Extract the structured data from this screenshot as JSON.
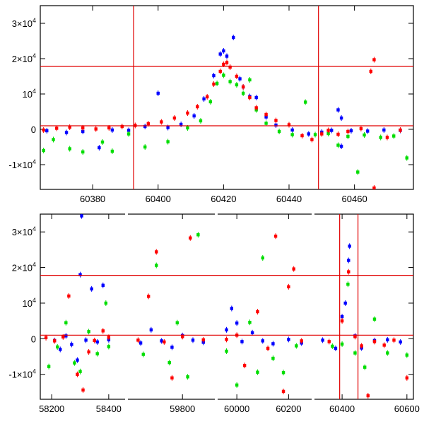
{
  "chart_data": [
    {
      "type": "scatter",
      "title": "",
      "xlabel": "",
      "ylabel": "",
      "xlim": [
        60364,
        60478
      ],
      "ylim": [
        -17000,
        35000
      ],
      "grid": false,
      "x_ticks": [
        60380,
        60400,
        60420,
        60440,
        60460
      ],
      "y_ticks": [
        {
          "value": 30000,
          "label": "3×10",
          "exp": "4"
        },
        {
          "value": 20000,
          "label": "2×10",
          "exp": "4"
        },
        {
          "value": 10000,
          "label": "10",
          "exp": "4"
        },
        {
          "value": 0,
          "label": "0",
          "exp": ""
        },
        {
          "value": -10000,
          "label": "-1×10",
          "exp": "4"
        }
      ],
      "reference_lines": {
        "vertical": [
          60392.5,
          60449
        ],
        "horizontal": [
          17800,
          1000
        ]
      },
      "series": [
        {
          "color": "#0000ff",
          "points": [
            [
              60366,
              -400
            ],
            [
              60372,
              -900
            ],
            [
              60377,
              -600
            ],
            [
              60382,
              -5200
            ],
            [
              60386,
              -200
            ],
            [
              60391,
              -300
            ],
            [
              60396,
              800
            ],
            [
              60400,
              10200
            ],
            [
              60403,
              500
            ],
            [
              60407,
              1400
            ],
            [
              60411,
              3800
            ],
            [
              60414,
              8600
            ],
            [
              60417,
              15200
            ],
            [
              60419,
              21300
            ],
            [
              60420,
              22200
            ],
            [
              60421,
              20700
            ],
            [
              60423,
              26000
            ],
            [
              60425,
              14300
            ],
            [
              60426,
              12000
            ],
            [
              60428,
              9300
            ],
            [
              60430,
              9000
            ],
            [
              60433,
              3500
            ],
            [
              60436,
              1200
            ],
            [
              60441,
              -200
            ],
            [
              60446,
              -1300
            ],
            [
              60450,
              -800
            ],
            [
              60453,
              -300
            ],
            [
              60455,
              5500
            ],
            [
              60456,
              3200
            ],
            [
              60456,
              -4800
            ],
            [
              60459,
              -400
            ],
            [
              60464,
              -500
            ],
            [
              60469,
              -200
            ],
            [
              60474,
              -300
            ]
          ]
        },
        {
          "color": "#00dd00",
          "points": [
            [
              60365,
              -6000
            ],
            [
              60368,
              -2900
            ],
            [
              60373,
              -5500
            ],
            [
              60377,
              -6400
            ],
            [
              60383,
              -3600
            ],
            [
              60386,
              -6200
            ],
            [
              60391,
              -1300
            ],
            [
              60396,
              -5000
            ],
            [
              60403,
              -3500
            ],
            [
              60409,
              400
            ],
            [
              60413,
              2400
            ],
            [
              60416,
              7800
            ],
            [
              60418,
              13000
            ],
            [
              60420,
              15300
            ],
            [
              60422,
              13500
            ],
            [
              60424,
              12600
            ],
            [
              60426,
              10200
            ],
            [
              60428,
              14000
            ],
            [
              60430,
              5500
            ],
            [
              60433,
              1700
            ],
            [
              60437,
              -600
            ],
            [
              60441,
              -1500
            ],
            [
              60445,
              7700
            ],
            [
              60448,
              -1500
            ],
            [
              60452,
              -1200
            ],
            [
              60455,
              -4500
            ],
            [
              60458,
              -2000
            ],
            [
              60461,
              -12100
            ],
            [
              60463,
              -1600
            ],
            [
              60468,
              -2300
            ],
            [
              60472,
              -1900
            ],
            [
              60476,
              -8100
            ]
          ]
        },
        {
          "color": "#ff0000",
          "points": [
            [
              60365,
              -200
            ],
            [
              60369,
              300
            ],
            [
              60373,
              600
            ],
            [
              60377,
              400
            ],
            [
              60381,
              100
            ],
            [
              60385,
              400
            ],
            [
              60389,
              800
            ],
            [
              60393,
              1100
            ],
            [
              60397,
              1600
            ],
            [
              60401,
              2100
            ],
            [
              60405,
              3200
            ],
            [
              60409,
              4600
            ],
            [
              60412,
              6400
            ],
            [
              60415,
              9200
            ],
            [
              60417,
              12800
            ],
            [
              60419,
              16400
            ],
            [
              60420,
              18400
            ],
            [
              60421,
              18900
            ],
            [
              60422,
              17600
            ],
            [
              60424,
              15000
            ],
            [
              60426,
              12000
            ],
            [
              60428,
              9000
            ],
            [
              60430,
              6100
            ],
            [
              60433,
              4200
            ],
            [
              60436,
              2500
            ],
            [
              60440,
              1300
            ],
            [
              60444,
              -1800
            ],
            [
              60447,
              -2900
            ],
            [
              60450,
              -1300
            ],
            [
              60452,
              -300
            ],
            [
              60455,
              -1400
            ],
            [
              60458,
              -600
            ],
            [
              60462,
              200
            ],
            [
              60465,
              16400
            ],
            [
              60466,
              19700
            ],
            [
              60466,
              -16600
            ],
            [
              60470,
              -2300
            ],
            [
              60474,
              -200
            ]
          ]
        }
      ]
    },
    {
      "type": "scatter",
      "title": "",
      "xlabel": "",
      "ylabel": "",
      "ylim": [
        -17000,
        35000
      ],
      "grid": false,
      "segments": [
        {
          "xlim": [
            58160,
            58440
          ],
          "ticks": [
            58200,
            58400
          ]
        },
        {
          "xlim": [
            59610,
            59905
          ],
          "ticks": [
            59800
          ]
        },
        {
          "xlim": [
            59945,
            60270
          ],
          "ticks": [
            60000,
            60200
          ]
        },
        {
          "xlim": [
            60330,
            60620
          ],
          "ticks": [
            60400,
            60600
          ]
        }
      ],
      "x_ticks": [
        58200,
        58400,
        59800,
        60000,
        60200,
        60400,
        60600
      ],
      "y_ticks": [
        {
          "value": 30000,
          "label": "3×10",
          "exp": "4"
        },
        {
          "value": 20000,
          "label": "2×10",
          "exp": "4"
        },
        {
          "value": 10000,
          "label": "10",
          "exp": "4"
        },
        {
          "value": 0,
          "label": "0",
          "exp": ""
        },
        {
          "value": -10000,
          "label": "-1×10",
          "exp": "4"
        }
      ],
      "reference_lines": {
        "vertical": [
          60392.5,
          60449
        ],
        "horizontal": [
          17800,
          1000
        ]
      },
      "series": [
        {
          "color": "#0000ff",
          "points": [
            [
              58210,
              -500
            ],
            [
              58230,
              -3000
            ],
            [
              58250,
              800
            ],
            [
              58270,
              -1600
            ],
            [
              58290,
              -6000
            ],
            [
              58300,
              18000
            ],
            [
              58305,
              34500
            ],
            [
              58320,
              -400
            ],
            [
              58340,
              14000
            ],
            [
              58360,
              -900
            ],
            [
              58380,
              15000
            ],
            [
              58400,
              -300
            ],
            [
              59640,
              -1200
            ],
            [
              59680,
              2500
            ],
            [
              59720,
              -600
            ],
            [
              59760,
              -2400
            ],
            [
              59800,
              900
            ],
            [
              59840,
              -400
            ],
            [
              59880,
              -1000
            ],
            [
              59960,
              2500
            ],
            [
              59980,
              8500
            ],
            [
              60000,
              4400
            ],
            [
              60020,
              -800
            ],
            [
              60060,
              1700
            ],
            [
              60100,
              -600
            ],
            [
              60140,
              -1400
            ],
            [
              60200,
              -200
            ],
            [
              60250,
              -1200
            ],
            [
              60340,
              -400
            ],
            [
              60380,
              -2700
            ],
            [
              60400,
              6200
            ],
            [
              60410,
              10000
            ],
            [
              60420,
              22000
            ],
            [
              60423,
              26000
            ],
            [
              60440,
              800
            ],
            [
              60460,
              -2600
            ],
            [
              60500,
              -500
            ],
            [
              60540,
              -300
            ],
            [
              60580,
              -900
            ]
          ]
        },
        {
          "color": "#00dd00",
          "points": [
            [
              58190,
              -7800
            ],
            [
              58220,
              -2300
            ],
            [
              58250,
              4500
            ],
            [
              58280,
              -6800
            ],
            [
              58300,
              -9200
            ],
            [
              58330,
              2000
            ],
            [
              58360,
              -4200
            ],
            [
              58390,
              10000
            ],
            [
              58400,
              -2200
            ],
            [
              59650,
              -4400
            ],
            [
              59700,
              20600
            ],
            [
              59750,
              -6700
            ],
            [
              59780,
              4500
            ],
            [
              59820,
              -10700
            ],
            [
              59860,
              29200
            ],
            [
              59960,
              -3500
            ],
            [
              60000,
              -13000
            ],
            [
              60050,
              4600
            ],
            [
              60080,
              -9400
            ],
            [
              60100,
              22700
            ],
            [
              60140,
              -5500
            ],
            [
              60180,
              -9500
            ],
            [
              60230,
              -2000
            ],
            [
              60370,
              -2100
            ],
            [
              60400,
              -1500
            ],
            [
              60418,
              15300
            ],
            [
              60440,
              -4000
            ],
            [
              60470,
              -8000
            ],
            [
              60500,
              5500
            ],
            [
              60540,
              -4000
            ],
            [
              60600,
              -4600
            ]
          ]
        },
        {
          "color": "#ff0000",
          "points": [
            [
              58180,
              300
            ],
            [
              58210,
              -600
            ],
            [
              58240,
              500
            ],
            [
              58260,
              12000
            ],
            [
              58290,
              -10000
            ],
            [
              58310,
              -14400
            ],
            [
              58330,
              -3700
            ],
            [
              58350,
              -500
            ],
            [
              58380,
              2200
            ],
            [
              58400,
              400
            ],
            [
              59630,
              -400
            ],
            [
              59670,
              11900
            ],
            [
              59700,
              24400
            ],
            [
              59730,
              -900
            ],
            [
              59760,
              -11000
            ],
            [
              59800,
              600
            ],
            [
              59830,
              28300
            ],
            [
              59880,
              -300
            ],
            [
              59960,
              -200
            ],
            [
              60000,
              1000
            ],
            [
              60030,
              -7500
            ],
            [
              60080,
              7600
            ],
            [
              60120,
              -2700
            ],
            [
              60150,
              28800
            ],
            [
              60180,
              -14800
            ],
            [
              60200,
              14600
            ],
            [
              60220,
              19600
            ],
            [
              60250,
              -600
            ],
            [
              60360,
              -800
            ],
            [
              60400,
              5000
            ],
            [
              60420,
              18800
            ],
            [
              60440,
              600
            ],
            [
              60460,
              -2000
            ],
            [
              60480,
              -16000
            ],
            [
              60500,
              -800
            ],
            [
              60530,
              -1800
            ],
            [
              60560,
              -400
            ],
            [
              60600,
              -11000
            ]
          ]
        }
      ]
    }
  ]
}
